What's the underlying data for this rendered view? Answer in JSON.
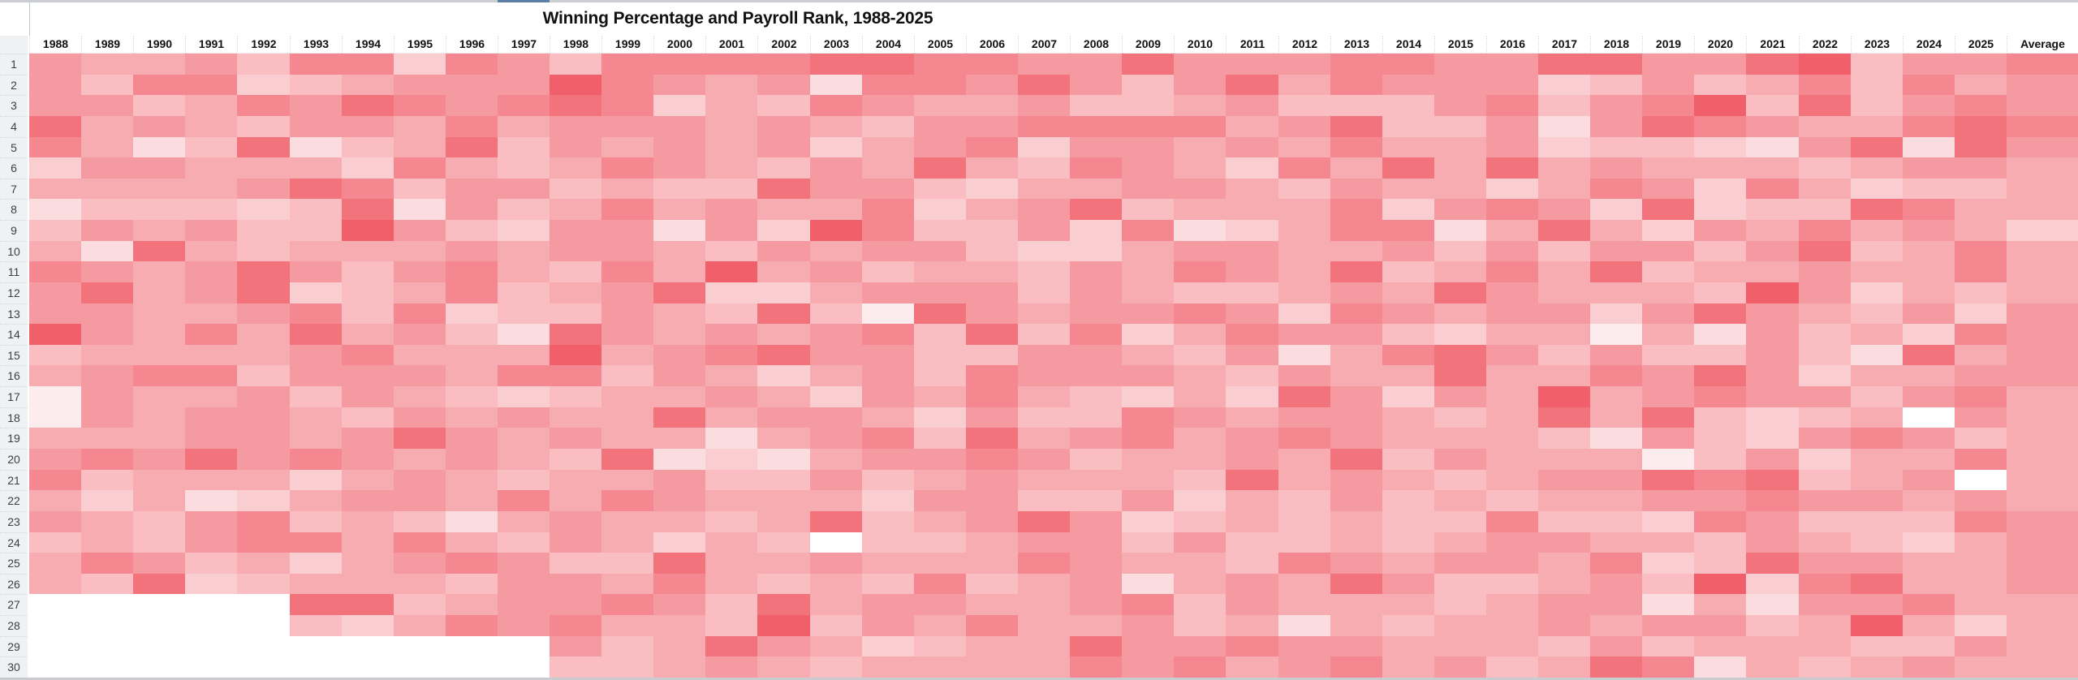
{
  "title": "Winning Percentage and Payroll Rank, 1988-2025",
  "chart_data": {
    "type": "heatmap",
    "title": "Winning Percentage and Payroll Rank, 1988-2025",
    "columns": [
      "1988",
      "1989",
      "1990",
      "1991",
      "1992",
      "1993",
      "1994",
      "1995",
      "1996",
      "1997",
      "1998",
      "1999",
      "2000",
      "2001",
      "2002",
      "2003",
      "2004",
      "2005",
      "2006",
      "2007",
      "2008",
      "2009",
      "2010",
      "2011",
      "2012",
      "2013",
      "2014",
      "2015",
      "2016",
      "2017",
      "2018",
      "2019",
      "2020",
      "2021",
      "2022",
      "2023",
      "2024",
      "2025",
      "Average"
    ],
    "rows": [
      "1",
      "2",
      "3",
      "4",
      "5",
      "6",
      "7",
      "8",
      "9",
      "10",
      "11",
      "12",
      "13",
      "14",
      "15",
      "16",
      "17",
      "18",
      "19",
      "20",
      "21",
      "22",
      "23",
      "24",
      "25",
      "26",
      "27",
      "28",
      "29",
      "30"
    ],
    "palette": [
      "#ffffff",
      "#fdecee",
      "#fbdcdf",
      "#facdd1",
      "#f9bdc2",
      "#f7acb2",
      "#f69aa1",
      "#f4878f",
      "#f3737c",
      "#f15f6a"
    ],
    "legend_position": "none",
    "grid": "off",
    "note": "Cell values are red-shade intensity levels 0-9 read from the screenshot (9 = darkest red, 0 = white); null = no cell rendered (team did not exist).",
    "values": [
      [
        6,
        5,
        5,
        6,
        4,
        7,
        7,
        3,
        7,
        6,
        4,
        7,
        7,
        7,
        7,
        8,
        8,
        7,
        7,
        6,
        6,
        8,
        6,
        6,
        6,
        7,
        7,
        6,
        6,
        8,
        8,
        6,
        6,
        8,
        9,
        4,
        6,
        6,
        7
      ],
      [
        6,
        4,
        7,
        7,
        3,
        4,
        5,
        6,
        6,
        6,
        9,
        7,
        6,
        5,
        6,
        2,
        7,
        7,
        6,
        8,
        6,
        4,
        6,
        8,
        5,
        7,
        6,
        6,
        6,
        3,
        4,
        6,
        4,
        5,
        7,
        4,
        7,
        5,
        6
      ],
      [
        6,
        6,
        4,
        5,
        7,
        6,
        8,
        7,
        6,
        7,
        8,
        7,
        3,
        5,
        4,
        7,
        6,
        5,
        5,
        6,
        4,
        4,
        5,
        6,
        4,
        4,
        4,
        6,
        7,
        4,
        6,
        7,
        9,
        4,
        8,
        4,
        6,
        7,
        6
      ],
      [
        8,
        5,
        6,
        5,
        4,
        6,
        6,
        5,
        7,
        5,
        6,
        6,
        6,
        5,
        6,
        5,
        4,
        6,
        6,
        7,
        7,
        7,
        7,
        5,
        6,
        8,
        4,
        4,
        6,
        2,
        6,
        8,
        7,
        6,
        5,
        5,
        7,
        8,
        7
      ],
      [
        7,
        5,
        2,
        4,
        8,
        2,
        4,
        5,
        8,
        4,
        6,
        5,
        6,
        5,
        6,
        3,
        5,
        6,
        7,
        3,
        6,
        6,
        5,
        6,
        5,
        7,
        5,
        5,
        6,
        3,
        4,
        4,
        3,
        2,
        6,
        8,
        2,
        8,
        6
      ],
      [
        3,
        6,
        6,
        5,
        5,
        5,
        3,
        7,
        5,
        4,
        5,
        7,
        6,
        5,
        4,
        6,
        5,
        8,
        5,
        4,
        7,
        6,
        5,
        3,
        7,
        5,
        8,
        5,
        8,
        5,
        6,
        5,
        5,
        5,
        4,
        5,
        6,
        6,
        5
      ],
      [
        5,
        5,
        5,
        5,
        6,
        8,
        7,
        4,
        6,
        6,
        4,
        5,
        4,
        4,
        8,
        6,
        6,
        4,
        3,
        5,
        5,
        6,
        6,
        5,
        4,
        6,
        5,
        5,
        3,
        5,
        7,
        6,
        3,
        7,
        5,
        3,
        4,
        4,
        5
      ],
      [
        2,
        4,
        4,
        4,
        3,
        4,
        8,
        2,
        6,
        4,
        5,
        7,
        5,
        6,
        5,
        5,
        7,
        3,
        5,
        6,
        8,
        4,
        5,
        5,
        5,
        7,
        3,
        6,
        7,
        6,
        3,
        8,
        3,
        4,
        4,
        8,
        7,
        5,
        5
      ],
      [
        4,
        6,
        5,
        6,
        4,
        4,
        9,
        6,
        4,
        3,
        6,
        6,
        2,
        6,
        3,
        9,
        7,
        4,
        4,
        6,
        3,
        7,
        2,
        3,
        5,
        7,
        7,
        2,
        5,
        8,
        5,
        3,
        6,
        5,
        7,
        5,
        6,
        5,
        3
      ],
      [
        5,
        2,
        8,
        5,
        4,
        5,
        5,
        5,
        6,
        5,
        6,
        6,
        5,
        4,
        6,
        5,
        6,
        6,
        4,
        3,
        3,
        5,
        6,
        6,
        5,
        5,
        6,
        4,
        6,
        4,
        6,
        6,
        4,
        6,
        8,
        4,
        5,
        7,
        5
      ],
      [
        7,
        6,
        5,
        6,
        8,
        6,
        4,
        6,
        7,
        5,
        4,
        7,
        5,
        9,
        5,
        6,
        4,
        5,
        5,
        4,
        6,
        5,
        7,
        6,
        5,
        8,
        4,
        5,
        7,
        5,
        8,
        4,
        5,
        5,
        6,
        5,
        5,
        7,
        5
      ],
      [
        6,
        8,
        5,
        6,
        8,
        3,
        4,
        5,
        7,
        4,
        5,
        6,
        8,
        3,
        3,
        5,
        6,
        6,
        6,
        4,
        6,
        5,
        4,
        4,
        5,
        6,
        5,
        8,
        6,
        5,
        5,
        5,
        4,
        9,
        6,
        3,
        5,
        4,
        5
      ],
      [
        6,
        6,
        5,
        5,
        6,
        7,
        4,
        7,
        3,
        4,
        4,
        6,
        5,
        4,
        8,
        4,
        1,
        8,
        6,
        5,
        6,
        6,
        7,
        6,
        3,
        7,
        6,
        5,
        6,
        6,
        3,
        6,
        8,
        6,
        5,
        4,
        6,
        3,
        6
      ],
      [
        9,
        6,
        5,
        7,
        5,
        8,
        5,
        6,
        4,
        2,
        8,
        6,
        5,
        6,
        5,
        6,
        7,
        4,
        8,
        4,
        7,
        3,
        5,
        7,
        6,
        6,
        4,
        3,
        5,
        5,
        1,
        5,
        2,
        6,
        4,
        5,
        3,
        7,
        6
      ],
      [
        4,
        5,
        5,
        5,
        5,
        6,
        7,
        5,
        5,
        5,
        9,
        5,
        6,
        7,
        8,
        6,
        6,
        4,
        4,
        6,
        6,
        5,
        4,
        6,
        2,
        5,
        7,
        8,
        6,
        4,
        6,
        4,
        4,
        6,
        4,
        2,
        8,
        5,
        6
      ],
      [
        5,
        6,
        7,
        7,
        4,
        6,
        6,
        6,
        5,
        7,
        7,
        4,
        6,
        5,
        3,
        5,
        6,
        4,
        7,
        6,
        6,
        6,
        5,
        4,
        6,
        5,
        5,
        8,
        5,
        5,
        7,
        6,
        8,
        6,
        3,
        5,
        5,
        6,
        6
      ],
      [
        1,
        6,
        5,
        5,
        6,
        4,
        6,
        5,
        4,
        3,
        4,
        5,
        5,
        6,
        5,
        3,
        6,
        5,
        7,
        5,
        4,
        3,
        5,
        3,
        8,
        6,
        3,
        6,
        5,
        9,
        5,
        6,
        7,
        6,
        6,
        4,
        6,
        7,
        5
      ],
      [
        1,
        6,
        5,
        6,
        6,
        5,
        4,
        6,
        5,
        6,
        5,
        5,
        8,
        5,
        6,
        6,
        5,
        3,
        6,
        4,
        4,
        7,
        6,
        5,
        6,
        6,
        5,
        4,
        5,
        8,
        5,
        8,
        4,
        3,
        4,
        5,
        0,
        6,
        5
      ],
      [
        5,
        5,
        5,
        6,
        6,
        5,
        6,
        8,
        6,
        5,
        6,
        5,
        5,
        2,
        5,
        6,
        7,
        4,
        8,
        5,
        6,
        7,
        5,
        6,
        7,
        6,
        5,
        5,
        5,
        4,
        2,
        6,
        4,
        3,
        6,
        7,
        6,
        4,
        5
      ],
      [
        6,
        7,
        6,
        8,
        6,
        7,
        6,
        5,
        6,
        5,
        4,
        8,
        2,
        3,
        2,
        5,
        6,
        6,
        7,
        6,
        4,
        5,
        5,
        6,
        5,
        8,
        4,
        6,
        5,
        5,
        5,
        1,
        4,
        6,
        3,
        5,
        5,
        7,
        5
      ],
      [
        7,
        4,
        5,
        5,
        5,
        3,
        5,
        6,
        5,
        4,
        5,
        5,
        6,
        4,
        4,
        6,
        4,
        5,
        6,
        5,
        5,
        5,
        4,
        8,
        5,
        6,
        5,
        4,
        5,
        6,
        6,
        8,
        7,
        8,
        4,
        5,
        6,
        0,
        5
      ],
      [
        5,
        3,
        5,
        2,
        3,
        5,
        6,
        6,
        5,
        7,
        5,
        7,
        6,
        5,
        5,
        5,
        3,
        6,
        6,
        4,
        4,
        6,
        3,
        5,
        4,
        6,
        4,
        5,
        4,
        5,
        5,
        6,
        6,
        7,
        6,
        6,
        5,
        6,
        5
      ],
      [
        6,
        5,
        4,
        6,
        7,
        4,
        5,
        4,
        2,
        5,
        6,
        5,
        5,
        4,
        5,
        8,
        4,
        5,
        6,
        8,
        6,
        3,
        4,
        5,
        4,
        5,
        4,
        4,
        7,
        4,
        4,
        3,
        7,
        6,
        4,
        4,
        4,
        7,
        6
      ],
      [
        4,
        5,
        4,
        6,
        7,
        7,
        5,
        7,
        5,
        4,
        6,
        5,
        3,
        5,
        4,
        0,
        4,
        4,
        5,
        6,
        6,
        4,
        6,
        4,
        4,
        5,
        4,
        5,
        6,
        6,
        5,
        5,
        4,
        6,
        5,
        4,
        3,
        5,
        6
      ],
      [
        5,
        7,
        6,
        4,
        5,
        3,
        5,
        6,
        7,
        6,
        4,
        4,
        8,
        5,
        5,
        6,
        5,
        5,
        5,
        7,
        6,
        5,
        5,
        4,
        7,
        6,
        5,
        6,
        6,
        5,
        7,
        3,
        4,
        8,
        6,
        6,
        5,
        5,
        6
      ],
      [
        5,
        4,
        8,
        3,
        4,
        5,
        5,
        5,
        4,
        6,
        6,
        5,
        7,
        5,
        4,
        5,
        4,
        7,
        4,
        5,
        6,
        2,
        5,
        6,
        5,
        8,
        6,
        4,
        4,
        5,
        6,
        4,
        9,
        3,
        7,
        8,
        5,
        5,
        6
      ],
      [
        null,
        null,
        null,
        null,
        null,
        8,
        8,
        4,
        5,
        6,
        6,
        7,
        6,
        4,
        8,
        5,
        6,
        6,
        5,
        5,
        6,
        7,
        4,
        6,
        5,
        5,
        5,
        4,
        5,
        6,
        6,
        2,
        5,
        2,
        6,
        6,
        7,
        5,
        5
      ],
      [
        null,
        null,
        null,
        null,
        null,
        4,
        3,
        5,
        7,
        6,
        7,
        5,
        5,
        4,
        9,
        4,
        6,
        5,
        7,
        5,
        5,
        6,
        4,
        5,
        2,
        5,
        4,
        5,
        5,
        6,
        5,
        6,
        6,
        4,
        5,
        9,
        5,
        3,
        5
      ],
      [
        null,
        null,
        null,
        null,
        null,
        null,
        null,
        null,
        null,
        null,
        6,
        4,
        5,
        8,
        6,
        5,
        3,
        4,
        5,
        5,
        8,
        6,
        6,
        7,
        6,
        6,
        5,
        5,
        5,
        4,
        6,
        4,
        5,
        5,
        5,
        4,
        4,
        6,
        5
      ],
      [
        null,
        null,
        null,
        null,
        null,
        null,
        null,
        null,
        null,
        null,
        4,
        4,
        5,
        6,
        5,
        4,
        5,
        5,
        5,
        5,
        7,
        6,
        7,
        5,
        6,
        7,
        5,
        6,
        4,
        5,
        8,
        7,
        2,
        5,
        4,
        5,
        6,
        5,
        5
      ]
    ]
  }
}
